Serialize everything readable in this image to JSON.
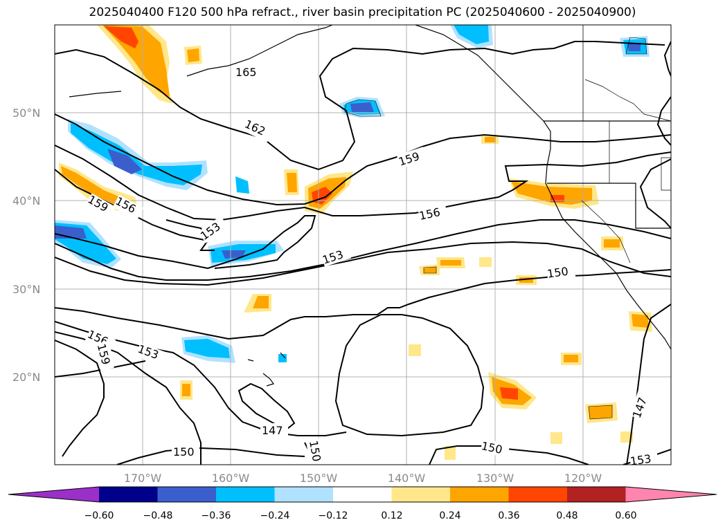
{
  "title": "2025040400 F120 500 hPa refract., river basin precipitation PC (2025040600 - 2025040900)",
  "latitude_labels": [
    "50°N",
    "40°N",
    "30°N",
    "20°N"
  ],
  "longitude_labels": [
    "170°W",
    "160°W",
    "150°W",
    "140°W",
    "130°W",
    "120°W"
  ],
  "contour_labels": [
    "165",
    "162",
    "159",
    "156",
    "153",
    "159",
    "156",
    "153",
    "150",
    "147",
    "150",
    "150",
    "147",
    "153",
    "156",
    "153",
    "159",
    "150"
  ],
  "colorbar": {
    "ticks": [
      "−0.60",
      "−0.48",
      "−0.36",
      "−0.24",
      "−0.12",
      "0.12",
      "0.24",
      "0.36",
      "0.48",
      "0.60"
    ],
    "colors": [
      "#9b30c9",
      "#00008b",
      "#3a5fcd",
      "#00bfff",
      "#b0e2ff",
      "#ffffff",
      "#ffe78a",
      "#ffa500",
      "#ff4500",
      "#b22222",
      "#ff85b0"
    ]
  },
  "colors": {
    "neg_strong": "#3a5fcd",
    "neg_mid": "#00bfff",
    "neg_light": "#b0e2ff",
    "pos_light": "#ffe78a",
    "pos_mid": "#ffa500",
    "pos_strong": "#ff4500",
    "grid": "#b0b0b0"
  }
}
